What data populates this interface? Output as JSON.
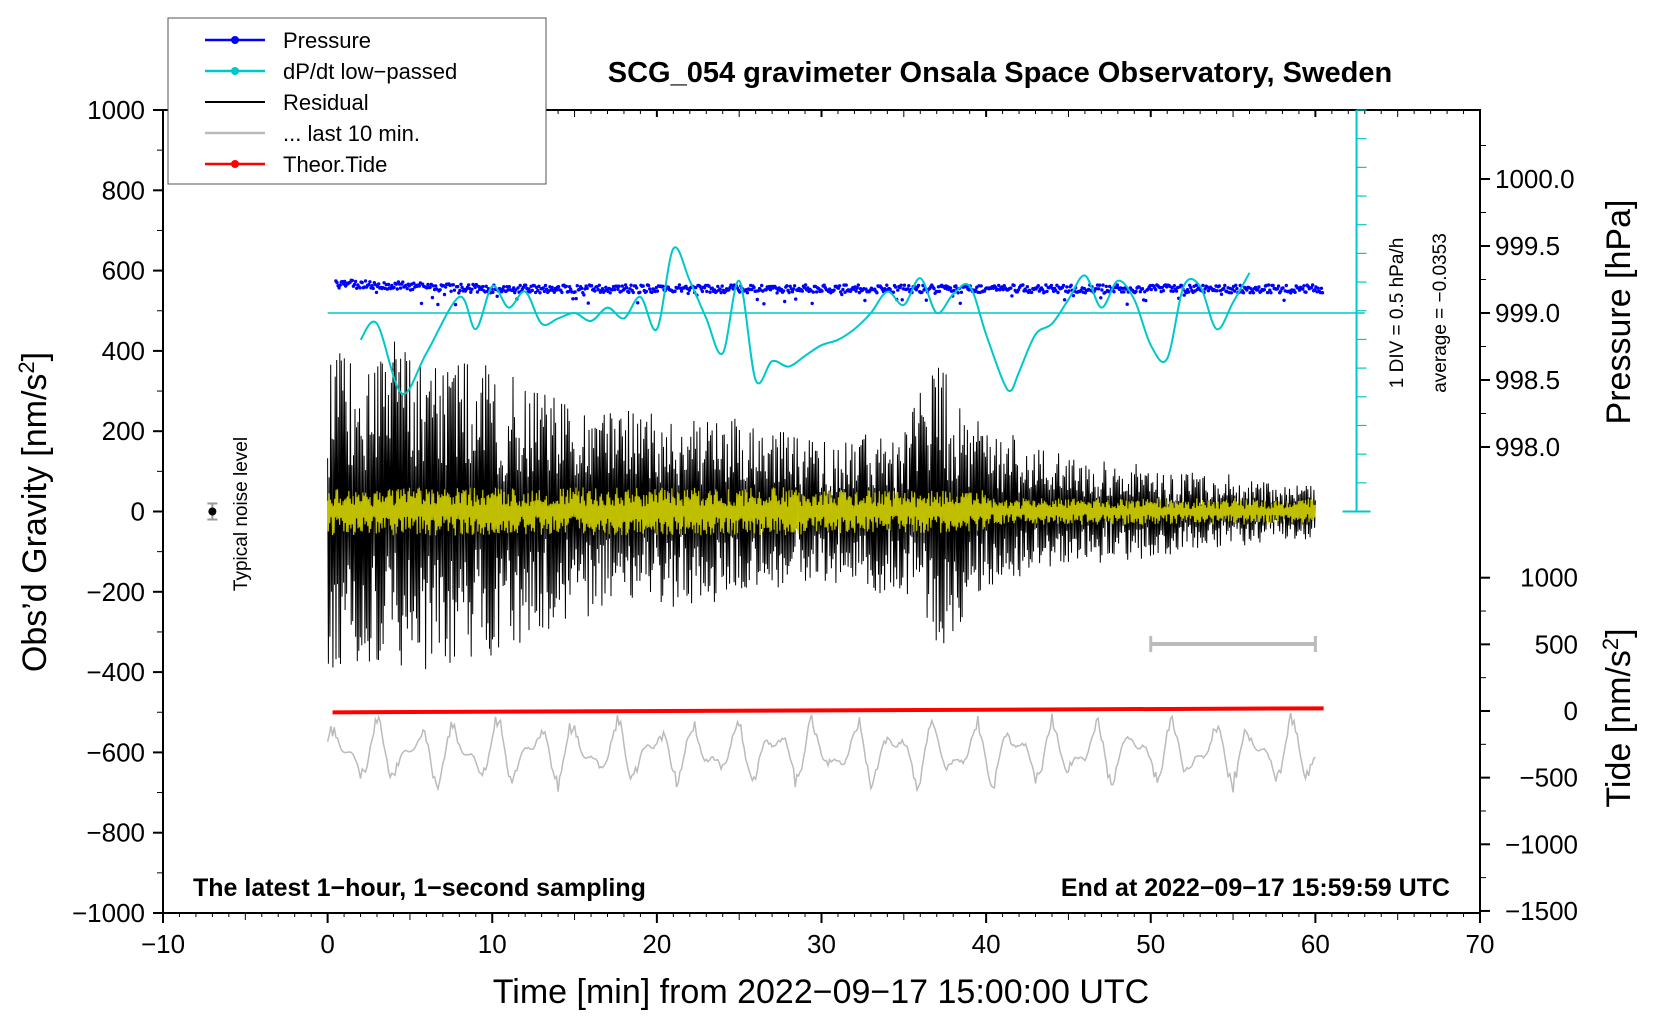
{
  "chart_data": {
    "type": "line",
    "title": "SCG_054 gravimeter Onsala Space Observatory, Sweden",
    "xlabel": "Time [min] from 2022−09−17 15:00:00 UTC",
    "ylabel_left_text": "Obs’d Gravity [nm/s",
    "ylabel_left_sup": "2",
    "ylabel_left_close": "]",
    "ylabel_right_pressure": "Pressure [hPa]",
    "ylabel_right_tide_text": "Tide [nm/s",
    "ylabel_right_tide_sup": "2",
    "ylabel_right_tide_close": "]",
    "xlim": [
      -10,
      70
    ],
    "ylim_gravity": [
      -1000,
      1000
    ],
    "x_ticks": [
      "−10",
      "0",
      "10",
      "20",
      "30",
      "40",
      "50",
      "60",
      "70"
    ],
    "y_ticks_gravity": [
      "1000",
      "800",
      "600",
      "400",
      "200",
      "0",
      "−200",
      "−400",
      "−600",
      "−800",
      "−1000"
    ],
    "pressure_ticks": [
      "1000.0",
      "999.5",
      "999.0",
      "998.5",
      "998.0"
    ],
    "tide_ticks": [
      "1000",
      "500",
      "0",
      "−500",
      "−1000",
      "−1500"
    ],
    "legend": [
      {
        "label": "Pressure",
        "color": "#0000ff",
        "marker": true
      },
      {
        "label": "dP/dt low−passed",
        "color": "#00c8c8",
        "marker": true
      },
      {
        "label": "Residual",
        "color": "#000000",
        "marker": false
      },
      {
        "label": "... last 10 min.",
        "color": "#bbbbbb",
        "marker": false
      },
      {
        "label": "Theor.Tide",
        "color": "#ff0000",
        "marker": true
      }
    ],
    "annotations": {
      "bottom_left": "The latest 1−hour, 1−second sampling",
      "bottom_right": "End at 2022−09−17 15:59:59 UTC",
      "noise_label": "Typical noise level",
      "div_label": "1 DIV = 0.5 hPa/h",
      "average_label": "average = −0.0353"
    },
    "series": [
      {
        "name": "Pressure",
        "unit": "hPa",
        "x_range": [
          0.5,
          60.5
        ],
        "approx_value": 999.18,
        "start_value": 999.22,
        "color": "#0000ff"
      },
      {
        "name": "dP/dt low-passed",
        "unit": "hPa/h",
        "baseline_value": 0,
        "color": "#00c8c8",
        "x": [
          2,
          3,
          4.5,
          6,
          8,
          9,
          10,
          11,
          12,
          13,
          14,
          15,
          16,
          17,
          18,
          19,
          20,
          21,
          22,
          23,
          24,
          25,
          26,
          27,
          28,
          29,
          30,
          31,
          32,
          33,
          34,
          35,
          36,
          37,
          38,
          39,
          40,
          41,
          41.5,
          42,
          43,
          44,
          45,
          46,
          47,
          48,
          49,
          50,
          51,
          52,
          53,
          54,
          55,
          56
        ],
        "y": [
          -0.1,
          -0.04,
          -0.3,
          -0.15,
          0.06,
          -0.06,
          0.1,
          0.02,
          0.08,
          -0.04,
          -0.02,
          0.0,
          -0.03,
          0.02,
          -0.02,
          0.06,
          -0.06,
          0.24,
          0.12,
          -0.02,
          -0.15,
          0.12,
          -0.25,
          -0.18,
          -0.2,
          -0.16,
          -0.12,
          -0.1,
          -0.06,
          0.0,
          0.08,
          0.03,
          0.13,
          0.0,
          0.07,
          0.1,
          -0.08,
          -0.25,
          -0.29,
          -0.22,
          -0.08,
          -0.04,
          0.05,
          0.14,
          0.02,
          0.12,
          0.05,
          -0.12,
          -0.17,
          0.1,
          0.1,
          -0.06,
          0.04,
          0.15
        ]
      },
      {
        "name": "Residual",
        "unit": "nm/s2",
        "x_range": [
          0,
          60
        ],
        "color": "#000000",
        "envelope_x": [
          0,
          5,
          10,
          15,
          20,
          25,
          30,
          35,
          37,
          40,
          45,
          50,
          55,
          60
        ],
        "envelope_amp": [
          380,
          420,
          360,
          260,
          250,
          220,
          180,
          210,
          380,
          200,
          140,
          110,
          80,
          60
        ]
      },
      {
        "name": "... last 10 min.",
        "unit": "nm/s2",
        "x_range": [
          0,
          60
        ],
        "color": "#bbbbbb",
        "offset_value": -600,
        "amplitude": 80
      },
      {
        "name": "Theor.Tide",
        "unit": "nm/s2",
        "x": [
          0.3,
          60.5
        ],
        "y": [
          -10,
          20
        ],
        "color": "#ff0000"
      },
      {
        "name": "Yellow overlay",
        "unit": "nm/s2",
        "x_range": [
          0,
          60
        ],
        "color": "#d4d400",
        "amplitude": 60
      }
    ],
    "noise_bar": {
      "x": -7,
      "center": 0,
      "half_range": 20
    },
    "ten_min_scale_bar": {
      "x": [
        50,
        60
      ],
      "y": -330
    }
  }
}
